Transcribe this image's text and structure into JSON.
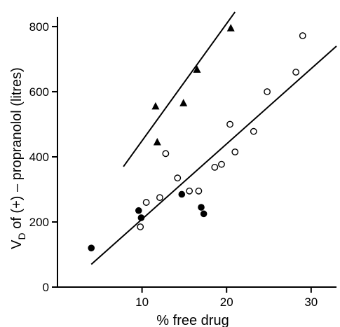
{
  "chart_data": {
    "type": "scatter",
    "xlabel": "% free drug",
    "ylabel": "V",
    "ylabel_sub": "D",
    "ylabel_rest": " of (+) – propranolol (litres)",
    "xlim": [
      0,
      33
    ],
    "ylim": [
      0,
      830
    ],
    "xticks": [
      10,
      20,
      30
    ],
    "yticks": [
      0,
      200,
      400,
      600,
      800
    ],
    "grid": false,
    "series": [
      {
        "marker": "triangle-filled",
        "points": [
          [
            11.6,
            555
          ],
          [
            11.8,
            445
          ],
          [
            14.9,
            565
          ],
          [
            16.5,
            668
          ],
          [
            20.5,
            795
          ]
        ]
      },
      {
        "marker": "circle-open",
        "points": [
          [
            9.8,
            185
          ],
          [
            10.5,
            260
          ],
          [
            12.1,
            275
          ],
          [
            12.8,
            410
          ],
          [
            14.2,
            335
          ],
          [
            15.6,
            295
          ],
          [
            16.7,
            295
          ],
          [
            18.6,
            368
          ],
          [
            19.4,
            377
          ],
          [
            20.4,
            500
          ],
          [
            21,
            415
          ],
          [
            23.2,
            478
          ],
          [
            24.8,
            600
          ],
          [
            28.2,
            660
          ],
          [
            29,
            772
          ]
        ]
      },
      {
        "marker": "circle-filled",
        "points": [
          [
            4,
            120
          ],
          [
            9.6,
            235
          ],
          [
            9.9,
            213
          ],
          [
            14.7,
            285
          ],
          [
            17,
            245
          ],
          [
            17.3,
            225
          ]
        ]
      }
    ],
    "fit_lines": [
      {
        "from": [
          7.8,
          370
        ],
        "to": [
          21,
          845
        ]
      },
      {
        "from": [
          4,
          70
        ],
        "to": [
          33,
          740
        ]
      }
    ],
    "colors": {
      "ink": "#000000",
      "background": "#ffffff"
    }
  }
}
